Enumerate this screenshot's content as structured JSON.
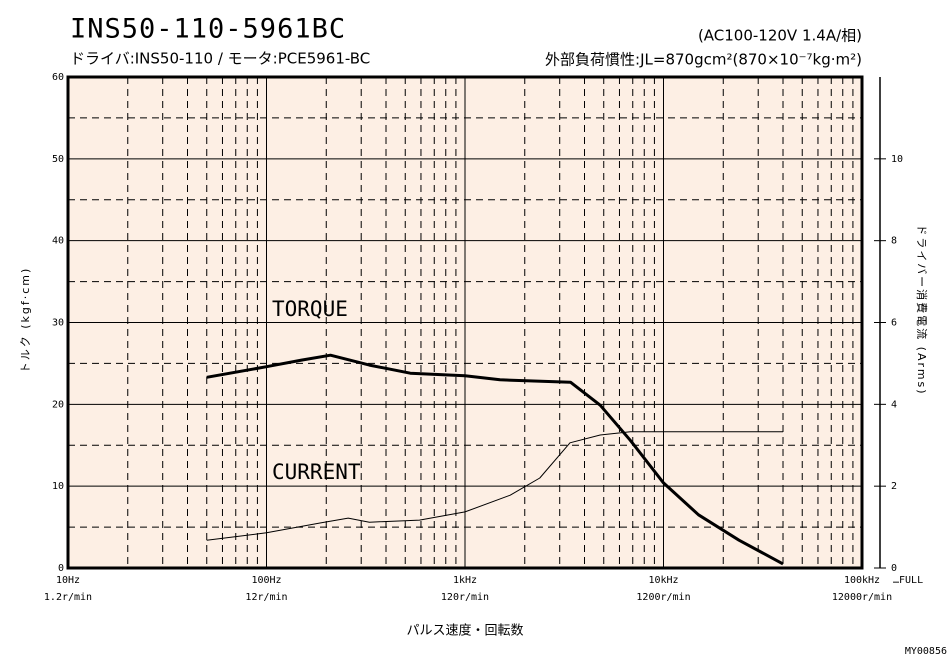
{
  "chart_data": {
    "type": "line",
    "title": "INS50-110-5961BC",
    "subtitle": "ドライバ:INS50-110 / モータ:PCE5961-BC",
    "power_spec": "(AC100-120V  1.4A/相)",
    "inertia": "外部負荷慣性:JL=870gcm²(870×10⁻⁷kg·m²)",
    "x_label": "パルス速度・回転数",
    "y_label": "トルク (kgf·cm)",
    "y2_label": "ドライバー消費電流 (Arms)",
    "x_end_note": "…FULL",
    "code": "MY00856",
    "xscale": "log",
    "xlim": [
      10,
      100000
    ],
    "xticks": [
      {
        "value": 10,
        "label": "10Hz"
      },
      {
        "value": 100,
        "label": "100Hz"
      },
      {
        "value": 1000,
        "label": "1kHz"
      },
      {
        "value": 10000,
        "label": "10kHz"
      },
      {
        "value": 100000,
        "label": "100kHz"
      }
    ],
    "x_speed_labels": [
      "1.2r/min",
      "12r/min",
      "120r/min",
      "1200r/min",
      "12000r/min"
    ],
    "ylim": [
      0,
      60
    ],
    "yticks": [
      0,
      10,
      20,
      30,
      40,
      50,
      60
    ],
    "y2lim": [
      0,
      12
    ],
    "y2ticks": [
      0,
      2,
      4,
      6,
      8,
      10
    ],
    "grid": true,
    "background": "#fdefe4",
    "series": [
      {
        "name": "TORQUE",
        "color": "#000000",
        "width": 3,
        "x": [
          50,
          100,
          150,
          210,
          330,
          530,
          1000,
          1500,
          3400,
          4800,
          6800,
          10000,
          15000,
          24000,
          40000
        ],
        "values": [
          23.3,
          24.6,
          25.4,
          26.0,
          24.8,
          23.8,
          23.5,
          23.0,
          22.7,
          19.9,
          15.6,
          10.4,
          6.5,
          3.4,
          0.5
        ]
      },
      {
        "name": "CURRENT",
        "color": "#000000",
        "width": 1,
        "axis": "y2",
        "x": [
          50,
          100,
          186,
          258,
          330,
          590,
          1000,
          1690,
          2380,
          3380,
          4800,
          6800,
          10000,
          40000
        ],
        "values": [
          0.68,
          0.86,
          1.1,
          1.22,
          1.12,
          1.17,
          1.37,
          1.78,
          2.2,
          3.06,
          3.25,
          3.33,
          3.33,
          3.33
        ]
      }
    ]
  }
}
